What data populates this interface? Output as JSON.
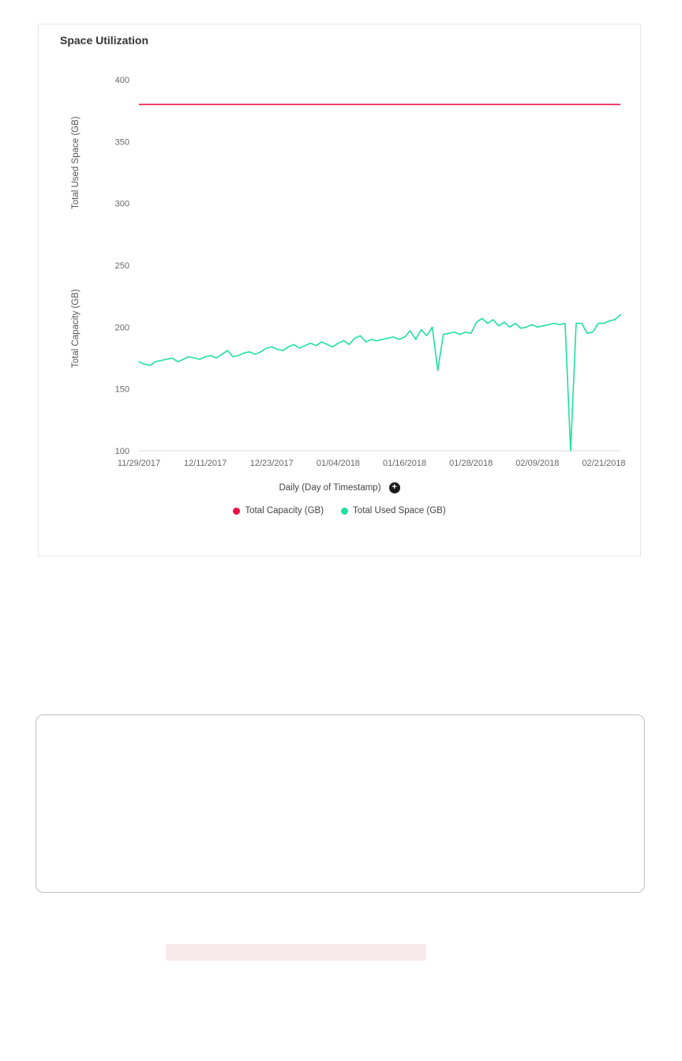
{
  "card": {
    "title": "Space Utilization"
  },
  "placeholder": {
    "color": "#f8e9ed"
  },
  "chart_data": {
    "type": "line",
    "title": "Space Utilization",
    "xlabel": "Daily (Day of Timestamp)",
    "ylabel_lines": [
      "Total Capacity (GB)",
      "Total Used Space (GB)"
    ],
    "ylim": [
      100,
      400
    ],
    "yticks": [
      100,
      150,
      200,
      250,
      300,
      350,
      400
    ],
    "grid": false,
    "legend_position": "bottom",
    "x_unit": "day",
    "x_start": "11/29/2017",
    "x_ticks": [
      {
        "index": 0,
        "label": "11/29/2017"
      },
      {
        "index": 12,
        "label": "12/11/2017"
      },
      {
        "index": 24,
        "label": "12/23/2017"
      },
      {
        "index": 36,
        "label": "01/04/2018"
      },
      {
        "index": 48,
        "label": "01/16/2018"
      },
      {
        "index": 60,
        "label": "01/28/2018"
      },
      {
        "index": 72,
        "label": "02/09/2018"
      },
      {
        "index": 84,
        "label": "02/21/2018"
      }
    ],
    "series": [
      {
        "name": "Total Capacity (GB)",
        "color": "#ee1147",
        "type": "constant",
        "value": 380
      },
      {
        "name": "Total Used Space (GB)",
        "color": "#1de0a1",
        "type": "daily",
        "values": [
          172,
          170,
          169,
          172,
          173,
          174,
          175,
          172,
          174,
          176,
          175,
          174,
          176,
          177,
          175,
          178,
          181,
          176,
          177,
          179,
          180,
          178,
          180,
          183,
          184,
          182,
          181,
          184,
          186,
          183,
          185,
          187,
          185,
          188,
          186,
          184,
          187,
          189,
          186,
          191,
          193,
          188,
          190,
          189,
          190,
          191,
          192,
          190,
          192,
          197,
          190,
          198,
          193,
          200,
          165,
          194,
          195,
          196,
          194,
          196,
          195,
          204,
          207,
          203,
          206,
          201,
          204,
          200,
          203,
          199,
          200,
          202,
          200,
          201,
          202,
          203,
          202,
          203,
          100,
          203,
          203,
          195,
          196,
          203,
          203,
          205,
          206,
          210
        ]
      }
    ],
    "drill_icon": "plus-in-circle"
  }
}
